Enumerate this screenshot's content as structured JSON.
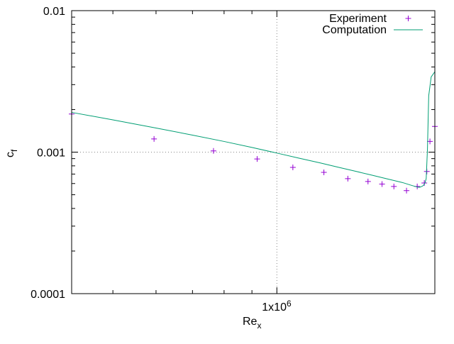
{
  "chart_data": {
    "type": "scatter",
    "xlabel_main": "Re",
    "xlabel_sub": "x",
    "ylabel_main": "c",
    "ylabel_sub": "f",
    "x_scale": "log",
    "y_scale": "log",
    "xlim": [
      420000,
      1950000
    ],
    "ylim": [
      0.0001,
      0.01
    ],
    "grid": "major ticks only (dotted)",
    "legend_position": "top-right",
    "x_tick_labels": [
      {
        "value": 1000000,
        "main": "1x10",
        "exp": "6"
      }
    ],
    "y_tick_labels": [
      {
        "value": 0.01,
        "label": "0.01"
      },
      {
        "value": 0.001,
        "label": "0.001"
      },
      {
        "value": 0.0001,
        "label": "0.0001"
      }
    ],
    "series": [
      {
        "name": "Experiment",
        "kind": "points",
        "color": "#9400d3",
        "x": [
          420000,
          595000,
          765000,
          920000,
          1070000,
          1220000,
          1350000,
          1470000,
          1560000,
          1640000,
          1730000,
          1810000,
          1865000,
          1885000,
          1910000,
          1950000
        ],
        "y": [
          0.00186,
          0.00124,
          0.00102,
          0.000895,
          0.00078,
          0.00072,
          0.00065,
          0.00062,
          0.000595,
          0.000572,
          0.000535,
          0.000572,
          0.000605,
          0.00073,
          0.00119,
          0.00152
        ]
      },
      {
        "name": "Computation",
        "kind": "line",
        "color": "#009e73",
        "x": [
          420000,
          500000,
          600000,
          700000,
          800000,
          900000,
          1000000,
          1100000,
          1200000,
          1300000,
          1400000,
          1500000,
          1600000,
          1700000,
          1760000,
          1800000,
          1820000,
          1830000,
          1840000,
          1850000,
          1860000,
          1870000,
          1880000,
          1890000,
          1900000,
          1920000,
          1950000
        ],
        "y": [
          0.00191,
          0.00169,
          0.00148,
          0.00132,
          0.00119,
          0.00108,
          0.000985,
          0.000905,
          0.00084,
          0.00078,
          0.00073,
          0.000685,
          0.000645,
          0.00061,
          0.000585,
          0.00057,
          0.000565,
          0.000565,
          0.00057,
          0.000575,
          0.000585,
          0.000605,
          0.00065,
          0.00105,
          0.0025,
          0.0034,
          0.0037
        ]
      }
    ]
  }
}
